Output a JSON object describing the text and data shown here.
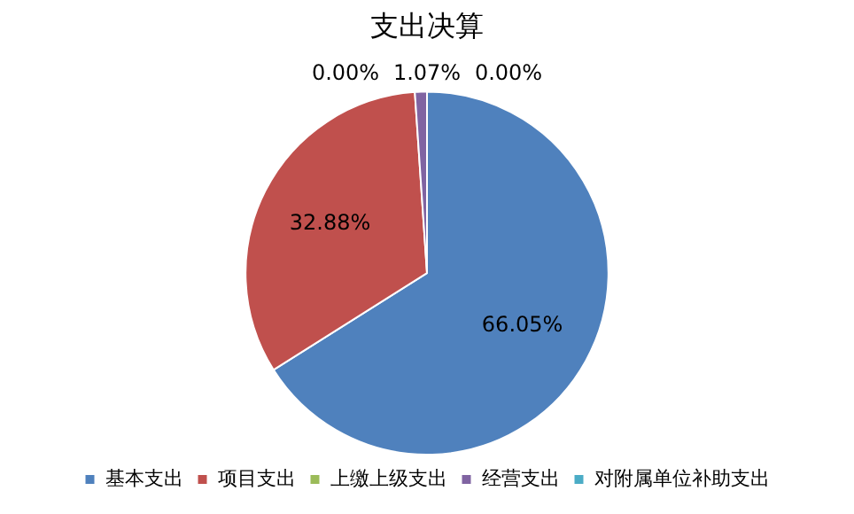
{
  "chart_data": {
    "type": "pie",
    "title": "支出决算",
    "categories": [
      "基本支出",
      "项目支出",
      "上缴上级支出",
      "经营支出",
      "对附属单位补助支出"
    ],
    "values": [
      66.05,
      32.88,
      0.0,
      1.07,
      0.0
    ],
    "colors": [
      "#4f81bd",
      "#c0504d",
      "#9bbb59",
      "#8064a2",
      "#4bacc6"
    ],
    "value_labels": [
      "66.05%",
      "32.88%",
      "0.00%",
      "1.07%",
      "0.00%"
    ],
    "legend": "bottom"
  }
}
